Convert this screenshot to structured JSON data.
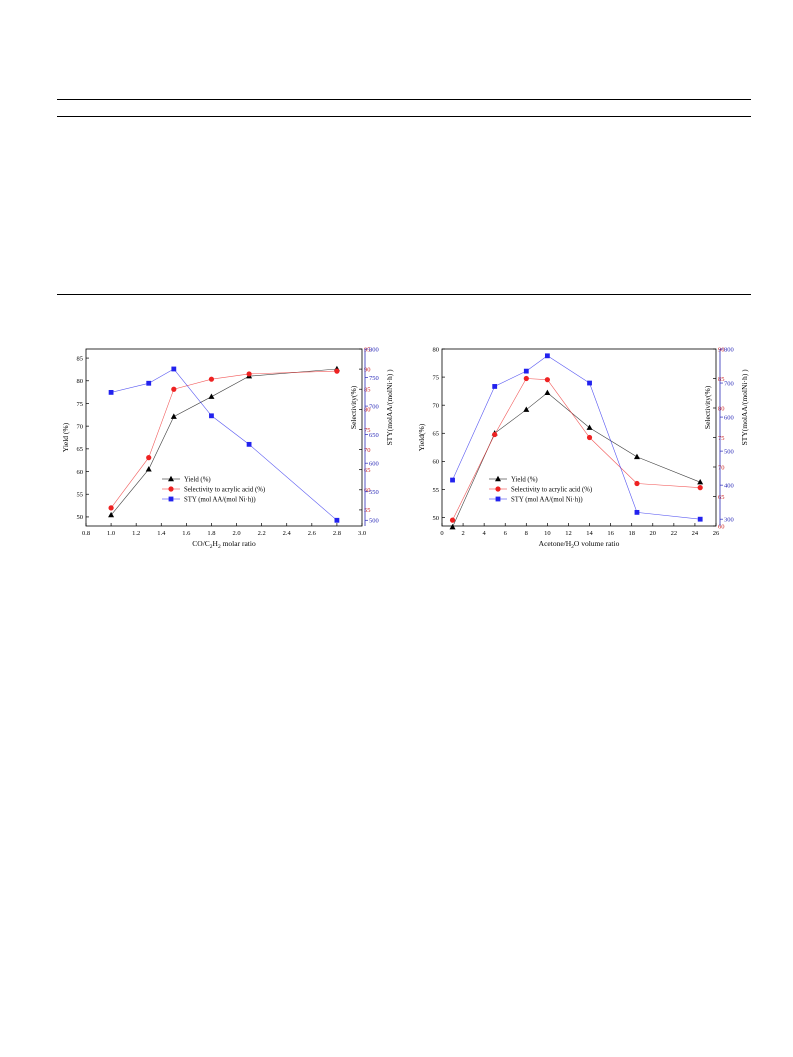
{
  "chart_data": [
    {
      "type": "line",
      "xlabel": "CO/C",
      "xlabel_sub_1": "2",
      "xlabel_mid": "H",
      "xlabel_sub_2": "2",
      "xlabel_tail": " molar ratio",
      "xlim": [
        0.8,
        3.0
      ],
      "x_ticks": [
        "0.8",
        "1.0",
        "1.2",
        "1.4",
        "1.6",
        "1.8",
        "2.0",
        "2.2",
        "2.4",
        "2.6",
        "2.8",
        "3.0"
      ],
      "axes": {
        "left": {
          "label": "Yield (%)",
          "ylim": [
            48,
            87
          ],
          "ticks": [
            "50",
            "55",
            "60",
            "65",
            "70",
            "75",
            "80",
            "85"
          ],
          "color": "#000000"
        },
        "right1": {
          "label": "Selectivity(%)",
          "ylim": [
            51,
            95
          ],
          "ticks": [
            "55",
            "60",
            "65",
            "70",
            "75",
            "80",
            "85",
            "90",
            "95"
          ],
          "color": "#cc2222"
        },
        "right2": {
          "label": "STY(molAA/(molNi·h)  )",
          "ylim": [
            490,
            800
          ],
          "ticks": [
            "500",
            "550",
            "600",
            "650",
            "700",
            "750",
            "800"
          ],
          "color": "#2a2ab8"
        }
      },
      "series": [
        {
          "name": "Yield (%)",
          "axis": "left",
          "color": "#000000",
          "marker": "triangle",
          "x": [
            1.0,
            1.3,
            1.5,
            1.8,
            2.1,
            2.8
          ],
          "y": [
            50.4,
            60.5,
            72.1,
            76.5,
            81.0,
            82.6
          ]
        },
        {
          "name": "Selectivity to acrylic acid (%)",
          "axis": "right1",
          "color": "#ee2222",
          "marker": "circle",
          "x": [
            1.0,
            1.3,
            1.5,
            1.8,
            2.1,
            2.8
          ],
          "y": [
            55.5,
            68.0,
            85.0,
            87.5,
            88.8,
            89.5
          ]
        },
        {
          "name": "STY (mol AA/(mol Ni·h))",
          "axis": "right2",
          "color": "#2222ee",
          "marker": "square",
          "x": [
            1.0,
            1.3,
            1.5,
            1.8,
            2.1,
            2.8
          ],
          "y": [
            724,
            740,
            765,
            683,
            633,
            500
          ]
        }
      ],
      "legend_position": "lower-center"
    },
    {
      "type": "line",
      "xlabel": "Acetone/H",
      "xlabel_sub_1": "2",
      "xlabel_mid": "O volume ratio",
      "xlabel_sub_2": "",
      "xlabel_tail": "",
      "xlim": [
        0,
        26
      ],
      "x_ticks": [
        "0",
        "2",
        "4",
        "6",
        "8",
        "10",
        "12",
        "14",
        "16",
        "18",
        "20",
        "22",
        "24",
        "26"
      ],
      "axes": {
        "left": {
          "label": "Yield(%)",
          "ylim": [
            48.5,
            80
          ],
          "ticks": [
            "50",
            "55",
            "60",
            "65",
            "70",
            "75",
            "80"
          ],
          "color": "#000000"
        },
        "right1": {
          "label": "Selectivity(%)",
          "ylim": [
            60,
            90
          ],
          "ticks": [
            "60",
            "65",
            "70",
            "75",
            "80",
            "85",
            "90"
          ],
          "color": "#cc2222"
        },
        "right2": {
          "label": "STY(molAA/(molNi·h)  )",
          "ylim": [
            280,
            800
          ],
          "ticks": [
            "300",
            "400",
            "500",
            "600",
            "700",
            "800"
          ],
          "color": "#2a2ab8"
        }
      },
      "series": [
        {
          "name": "Yield (%)",
          "axis": "left",
          "color": "#000000",
          "marker": "triangle",
          "x": [
            1,
            5,
            8,
            10,
            14,
            18.5,
            24.5
          ],
          "y": [
            48.3,
            65.0,
            69.2,
            72.2,
            66.0,
            60.8,
            56.3
          ]
        },
        {
          "name": "Selectivity to acrylic acid (%)",
          "axis": "right1",
          "color": "#ee2222",
          "marker": "circle",
          "x": [
            1,
            5,
            8,
            10,
            14,
            18.5,
            24.5
          ],
          "y": [
            61.0,
            75.5,
            85.0,
            84.8,
            75.0,
            67.2,
            66.5
          ]
        },
        {
          "name": "STY (mol AA/(mol Ni·h))",
          "axis": "right2",
          "color": "#2222ee",
          "marker": "square",
          "x": [
            1,
            5,
            8,
            10,
            14,
            18.5,
            24.5
          ],
          "y": [
            415,
            690,
            735,
            780,
            700,
            320,
            300
          ]
        }
      ],
      "legend_position": "lower-center"
    }
  ]
}
